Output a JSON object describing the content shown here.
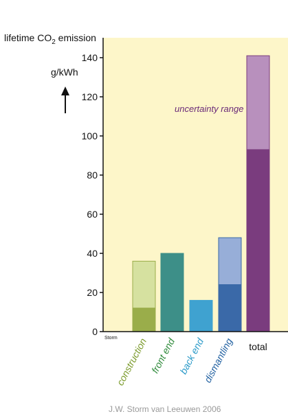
{
  "chart_data": {
    "type": "bar",
    "title_prefix": "lifetime CO",
    "title_sub": "2",
    "title_suffix": " emission",
    "unit": "g/kWh",
    "ylim": [
      0,
      145
    ],
    "yticks": [
      0,
      20,
      40,
      60,
      80,
      100,
      120,
      140
    ],
    "origin_label": "Storm",
    "annotation": "uncertainty range",
    "credit": "J.W. Storm van Leeuwen 2006",
    "background_color": "#fdf6c9",
    "categories": [
      {
        "label": "construction",
        "label_color": "#7a9a2a",
        "low": 12,
        "high": 36,
        "low_color": "#9aad4a",
        "range_color": "#d6e1a0"
      },
      {
        "label": "front end",
        "label_color": "#2e8a3a",
        "low": 40,
        "high": 40,
        "low_color": "#3d8f88",
        "range_color": "#3d8f88"
      },
      {
        "label": "back end",
        "label_color": "#2b9ac8",
        "low": 16,
        "high": 16,
        "low_color": "#3fa2d0",
        "range_color": "#3fa2d0"
      },
      {
        "label": "dismantling",
        "label_color": "#1f5fa0",
        "low": 24,
        "high": 48,
        "low_color": "#3a69a8",
        "range_color": "#97aed8"
      },
      {
        "label": "total",
        "label_color": "#111111",
        "low": 93,
        "high": 141,
        "low_color": "#7a3c7e",
        "range_color": "#b890bd"
      }
    ]
  }
}
